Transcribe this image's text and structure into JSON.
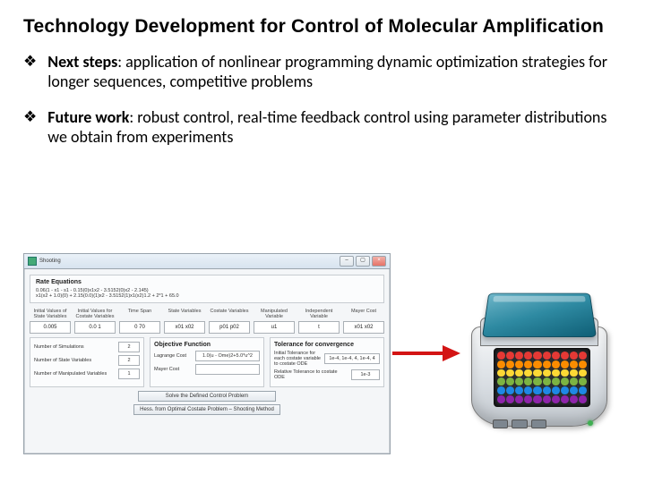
{
  "title": "Technology Development for Control of Molecular Amplification",
  "bullets": [
    {
      "lead": "Next steps",
      "text": ": application of nonlinear programming dynamic optimization strategies for longer sequences, competitive problems"
    },
    {
      "lead": "Future work",
      "text": ": robust control, real-time feedback control using parameter distributions we obtain from experiments"
    }
  ],
  "bullet_glyph": "❖",
  "arrow": {
    "color": "#d31414",
    "stroke_width": 4
  },
  "app": {
    "window_title": "Shooting",
    "equations_label": "Rate Equations",
    "eq1": "0.06(1 - x1 - s1 - 0.15(0)x1x2 - 3.5152(0)x2 - 2.145)",
    "eq2": "x1(x2 + 1.0)(0) + 2.15(0.0)(1)x2 - 3.5152(1)x1(x2)1.2 + 2*1 + 65.0",
    "columns": [
      {
        "label": "Initial Values of State Variables",
        "value": "0.005"
      },
      {
        "label": "Initial Values for Costate Variables",
        "value": "0.0 1"
      },
      {
        "label": "Time Span",
        "value": "0 70"
      },
      {
        "label": "State Variables",
        "value": "x01 x02"
      },
      {
        "label": "Costate Variables",
        "value": "p01 p02"
      },
      {
        "label": "Manipulated Variable",
        "value": "u1"
      },
      {
        "label": "Independent Variable",
        "value": "t"
      },
      {
        "label": "Mayer Cost",
        "value": "x01 x02"
      }
    ],
    "numbox": {
      "rows": [
        {
          "label": "Number of Simulations",
          "value": "2"
        },
        {
          "label": "Number of State Variables",
          "value": "2"
        },
        {
          "label": "Number of Manipulated Variables",
          "value": "1"
        }
      ]
    },
    "objective": {
      "title": "Objective Function",
      "row_label": "Lagrange Cost",
      "value": "1.0(u - Ome)2+5.0*u^2"
    },
    "tolerance": {
      "title": "Tolerance for convergence",
      "row1_label": "Initial Tolerance for each costate variable to costate ODE",
      "row1_value": "1e-4, 1e-4, 4, 1e-4, 4",
      "row2_label": "Relative Tolerance to costate ODE",
      "row2_value": "1e-3"
    },
    "buttons": {
      "b1": "Solve the Defined Control Problem",
      "b2": "Hess. from Optimal Costate Problem – Shooting Method"
    }
  },
  "plate": {
    "rows": 6,
    "cols": 10,
    "row_colors": [
      "#e53935",
      "#fb8c00",
      "#fdd835",
      "#7cb342",
      "#1e88e5",
      "#8e24aa"
    ]
  }
}
